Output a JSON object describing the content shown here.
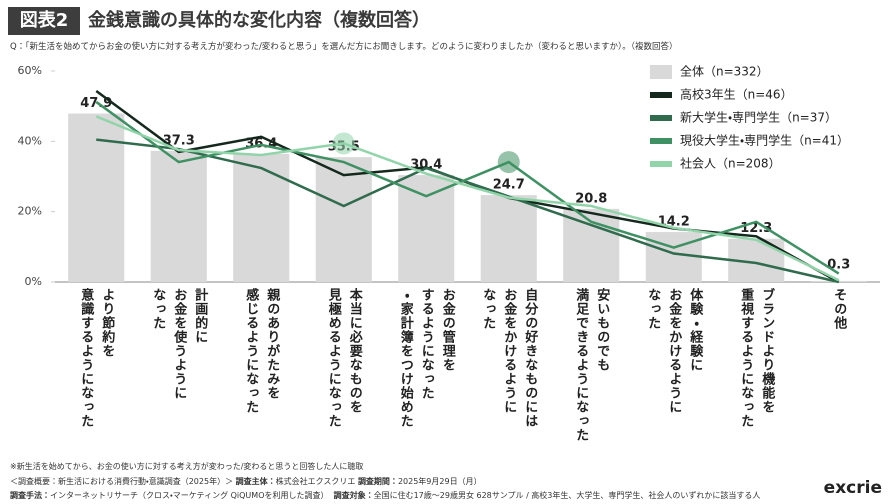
{
  "header": {
    "badge": "図表2",
    "title": "金銭意識の具体的な変化内容（複数回答）"
  },
  "question": "Q：「新生活を始めてからお金の使い方に対する考え方が変わった/変わると思う」を選んだ方にお聞きします。どのように変わりましたか（変わると思いますか）。（複数回答）",
  "chart_data": {
    "type": "combo",
    "categories": [
      "より節約を\n意識するようになった",
      "計画的に\nお金を使うように\nなった",
      "親のありがたみを\n感じるようになった",
      "本当に必要なものを\n見極めるようになった",
      "お金の管理を\nするようになった\n・家計簿をつけ始めた",
      "自分の好きなものには\nお金をかけるように\nなった",
      "安いものでも\n満足できるようになった",
      "体験・経験に\nお金をかけるように\nなった",
      "ブランドより機能を\n重視するようになった",
      "その他"
    ],
    "series": [
      {
        "name": "全体（n=332）",
        "type": "bar",
        "color": "#d9d9d9",
        "values": [
          47.9,
          37.3,
          36.4,
          35.5,
          30.4,
          24.7,
          20.8,
          14.2,
          12.3,
          0.3
        ]
      },
      {
        "name": "高校3年生（n=46）",
        "type": "line",
        "color": "#14281d",
        "values": [
          54.3,
          37.0,
          41.3,
          30.4,
          32.6,
          23.9,
          19.6,
          15.2,
          13.0,
          0
        ]
      },
      {
        "name": "新大学生・専門学生（n=37）",
        "type": "line",
        "color": "#2f6b4c",
        "values": [
          40.5,
          37.8,
          32.4,
          21.6,
          32.4,
          24.3,
          16.2,
          8.1,
          5.4,
          0
        ]
      },
      {
        "name": "現役大学生・専門学生（n=41）",
        "type": "line",
        "color": "#3f9163",
        "values": [
          51.2,
          34.1,
          39.0,
          34.1,
          24.4,
          34.1,
          17.1,
          9.8,
          17.1,
          2.4
        ]
      },
      {
        "name": "社会人（n=208）",
        "type": "line",
        "color": "#92d4a9",
        "values": [
          47.1,
          37.5,
          36.1,
          39.4,
          30.8,
          24.0,
          21.6,
          15.4,
          12.0,
          0.5
        ]
      }
    ],
    "ylim": [
      0,
      60
    ],
    "yticks": [
      {
        "value": 0,
        "label": "0%"
      },
      {
        "value": 20,
        "label": "20%"
      },
      {
        "value": 40,
        "label": "40%"
      },
      {
        "value": 60,
        "label": "60%"
      }
    ],
    "grid": false,
    "legend": "upper right"
  },
  "footnote": "※新生活を始めてから、お金の使い方に対する考え方が変わった/変わると思うと回答した人に聴取",
  "footer": {
    "overview": "＜調査概要：新生活における消費行動・意識調査（2025年）＞",
    "sponsor_label": "調査主体：",
    "sponsor": "株式会社エクスクリエ",
    "period_label": "調査期間：",
    "period": "2025年9月29日（月）",
    "method_label": "調査手法：",
    "method": "インターネットリサーチ（クロス・マーケティング QiQUMOを利用した調査）",
    "target_label": "調査対象：",
    "target": "全国に住む17歳〜29歳男女 628サンプル / 高校3年生、大学生、専門学生、社会人のいずれかに該当する人"
  },
  "logo": "excrie"
}
